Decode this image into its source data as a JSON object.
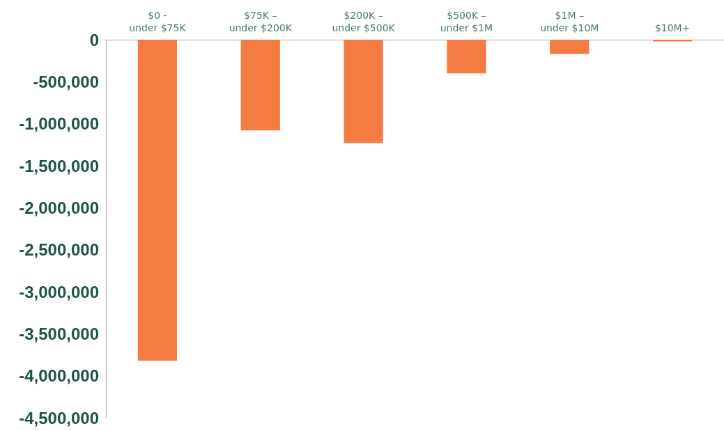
{
  "chart_data": {
    "type": "bar",
    "categories": [
      "$0 -\nunder $75K",
      "$75K –\nunder $200K",
      "$200K –\nunder $500K",
      "$500K –\nunder $1M",
      "$1M –\nunder $10M",
      "$10M+"
    ],
    "values": [
      -3820000,
      -1080000,
      -1230000,
      -400000,
      -170000,
      -20000
    ],
    "color": "#f47b42",
    "ylim": [
      -4500000,
      0
    ],
    "yticks": [
      {
        "value": -4500000,
        "label": "-4,500,000"
      },
      {
        "value": -4000000,
        "label": "-4,000,000"
      },
      {
        "value": -3500000,
        "label": "-3,500,000"
      },
      {
        "value": -3000000,
        "label": "-3,000,000"
      },
      {
        "value": -2500000,
        "label": "-2,500,000"
      },
      {
        "value": -2000000,
        "label": "-2,000,000"
      },
      {
        "value": -1500000,
        "label": "-1,500,000"
      },
      {
        "value": -1000000,
        "label": "-1,000,000"
      },
      {
        "value": -500000,
        "label": "-500,000"
      },
      0
    ],
    "grid": false
  }
}
